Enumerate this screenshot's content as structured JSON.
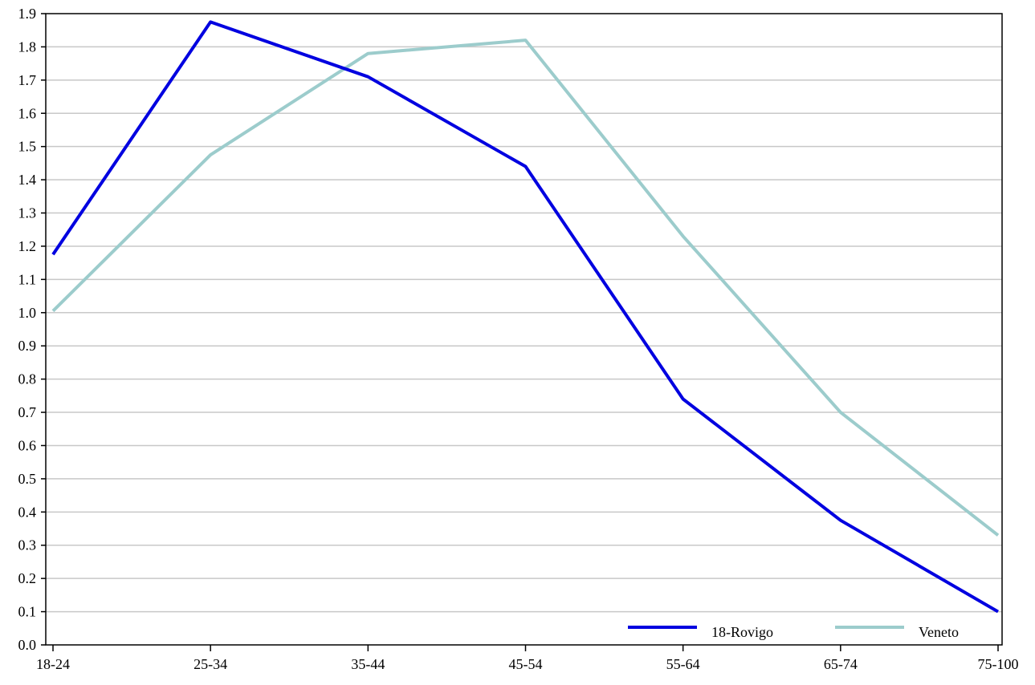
{
  "chart_data": {
    "type": "line",
    "title": "",
    "xlabel": "",
    "ylabel": "",
    "categories": [
      "18-24",
      "25-34",
      "35-44",
      "45-54",
      "55-64",
      "65-74",
      "75-100"
    ],
    "ylim": [
      0,
      1.9
    ],
    "yticks": [
      "0.0",
      "0.1",
      "0.2",
      "0.3",
      "0.4",
      "0.5",
      "0.6",
      "0.7",
      "0.8",
      "0.9",
      "1.0",
      "1.1",
      "1.2",
      "1.3",
      "1.4",
      "1.5",
      "1.6",
      "1.7",
      "1.8",
      "1.9"
    ],
    "grid": true,
    "legend_position": "bottom-right",
    "series": [
      {
        "name": "18-Rovigo",
        "color": "#0000e0",
        "values": [
          1.175,
          1.875,
          1.71,
          1.44,
          0.74,
          0.375,
          0.1
        ]
      },
      {
        "name": "Veneto",
        "color": "#9ccccc",
        "values": [
          1.005,
          1.475,
          1.78,
          1.82,
          1.23,
          0.7,
          0.33
        ]
      }
    ]
  }
}
